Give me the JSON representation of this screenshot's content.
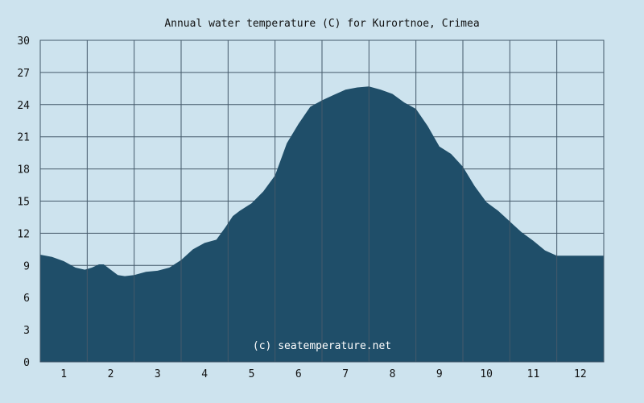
{
  "chart_data": {
    "type": "area",
    "title": "Annual water temperature (C) for Kurortnoe, Crimea",
    "watermark": "(c) seatemperature.net",
    "xlabel": "",
    "ylabel": "",
    "x_ticks": [
      "1",
      "2",
      "3",
      "4",
      "5",
      "6",
      "7",
      "8",
      "9",
      "10",
      "11",
      "12"
    ],
    "y_ticks": [
      "0",
      "3",
      "6",
      "9",
      "12",
      "15",
      "18",
      "21",
      "24",
      "27",
      "30"
    ],
    "ylim": [
      0,
      30
    ],
    "xlim": [
      0.5,
      12.5
    ],
    "grid": true,
    "colors": {
      "background": "#cde3ee",
      "plot_background": "#cde3ee",
      "fill": "#1f4e69",
      "grid": "#44596a"
    },
    "series": [
      {
        "x": [
          0.5,
          0.75,
          1.0,
          1.25,
          1.45,
          1.6,
          1.75,
          1.85,
          2.0,
          2.15,
          2.3,
          2.5,
          2.75,
          3.0,
          3.25,
          3.5,
          3.75,
          4.0,
          4.25,
          4.45,
          4.6,
          4.75,
          5.0,
          5.25,
          5.5,
          5.75,
          6.0,
          6.25,
          6.5,
          6.75,
          7.0,
          7.25,
          7.5,
          7.75,
          8.0,
          8.25,
          8.5,
          8.75,
          9.0,
          9.25,
          9.5,
          9.75,
          10.0,
          10.25,
          10.5,
          10.75,
          11.0,
          11.25,
          11.5,
          11.75,
          12.0,
          12.25,
          12.5
        ],
        "values": [
          10.0,
          9.8,
          9.4,
          8.8,
          8.6,
          8.8,
          9.1,
          9.1,
          8.6,
          8.1,
          8.0,
          8.1,
          8.4,
          8.5,
          8.8,
          9.5,
          10.5,
          11.1,
          11.4,
          12.6,
          13.6,
          14.1,
          14.8,
          15.9,
          17.4,
          20.4,
          22.2,
          23.8,
          24.4,
          24.9,
          25.4,
          25.6,
          25.7,
          25.4,
          25.0,
          24.2,
          23.6,
          22.0,
          20.1,
          19.4,
          18.2,
          16.4,
          14.9,
          14.1,
          13.1,
          12.1,
          11.3,
          10.4,
          9.9,
          9.9,
          9.9,
          9.9,
          9.9
        ]
      }
    ]
  }
}
